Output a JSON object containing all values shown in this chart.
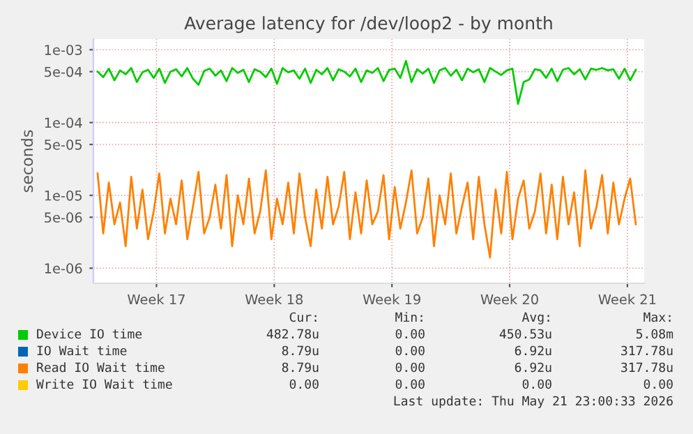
{
  "chart_data": {
    "type": "line",
    "title": "Average latency for /dev/loop2 - by month",
    "ylabel": "seconds",
    "log": "y",
    "x": [
      "2026-04-20T00:00",
      "2026-04-20T08:00",
      "2026-04-20T16:00",
      "2026-04-21T00:00",
      "2026-04-21T08:00",
      "2026-04-21T16:00",
      "2026-04-22T00:00",
      "2026-04-22T08:00",
      "2026-04-22T16:00",
      "2026-04-23T00:00",
      "2026-04-23T08:00",
      "2026-04-23T16:00",
      "2026-04-24T00:00",
      "2026-04-24T08:00",
      "2026-04-24T16:00",
      "2026-04-25T00:00",
      "2026-04-25T08:00",
      "2026-04-25T16:00",
      "2026-04-26T00:00",
      "2026-04-26T08:00",
      "2026-04-26T16:00",
      "2026-04-27T00:00",
      "2026-04-27T08:00",
      "2026-04-27T16:00",
      "2026-04-28T00:00",
      "2026-04-28T08:00",
      "2026-04-28T16:00",
      "2026-04-29T00:00",
      "2026-04-29T08:00",
      "2026-04-29T16:00",
      "2026-04-30T00:00",
      "2026-04-30T08:00",
      "2026-04-30T16:00",
      "2026-05-01T00:00",
      "2026-05-01T08:00",
      "2026-05-01T16:00",
      "2026-05-02T00:00",
      "2026-05-02T08:00",
      "2026-05-02T16:00",
      "2026-05-03T00:00",
      "2026-05-03T08:00",
      "2026-05-03T16:00",
      "2026-05-04T00:00",
      "2026-05-04T08:00",
      "2026-05-04T16:00",
      "2026-05-05T00:00",
      "2026-05-05T08:00",
      "2026-05-05T16:00",
      "2026-05-06T00:00",
      "2026-05-06T08:00",
      "2026-05-06T16:00",
      "2026-05-07T00:00",
      "2026-05-07T08:00",
      "2026-05-07T16:00",
      "2026-05-08T00:00",
      "2026-05-08T08:00",
      "2026-05-08T16:00",
      "2026-05-09T00:00",
      "2026-05-09T08:00",
      "2026-05-09T16:00",
      "2026-05-10T00:00",
      "2026-05-10T08:00",
      "2026-05-10T16:00",
      "2026-05-11T00:00",
      "2026-05-11T08:00",
      "2026-05-11T16:00",
      "2026-05-12T00:00",
      "2026-05-12T08:00",
      "2026-05-12T16:00",
      "2026-05-13T00:00",
      "2026-05-13T08:00",
      "2026-05-13T16:00",
      "2026-05-14T00:00",
      "2026-05-14T08:00",
      "2026-05-14T16:00",
      "2026-05-15T00:00",
      "2026-05-15T08:00",
      "2026-05-15T16:00",
      "2026-05-16T00:00",
      "2026-05-16T08:00",
      "2026-05-16T16:00",
      "2026-05-17T00:00",
      "2026-05-17T08:00",
      "2026-05-17T16:00",
      "2026-05-18T00:00",
      "2026-05-18T08:00",
      "2026-05-18T16:00",
      "2026-05-19T00:00",
      "2026-05-19T08:00",
      "2026-05-19T16:00",
      "2026-05-20T00:00",
      "2026-05-20T08:00",
      "2026-05-20T16:00",
      "2026-05-21T00:00",
      "2026-05-21T08:00",
      "2026-05-21T16:00",
      "2026-05-22T00:00"
    ],
    "series": [
      {
        "name": "Device IO time",
        "color": "#00cc00",
        "values": [
          0.0005,
          0.00042,
          0.00055,
          0.00038,
          0.00052,
          0.00046,
          0.00056,
          0.00036,
          0.00049,
          0.00053,
          0.00041,
          0.00055,
          0.00035,
          0.0005,
          0.00054,
          0.00043,
          0.00056,
          0.0004,
          0.00033,
          0.00051,
          0.00055,
          0.00044,
          0.00052,
          0.00037,
          0.00056,
          0.00048,
          0.00053,
          0.00036,
          0.00054,
          0.0005,
          0.00042,
          0.00055,
          0.00034,
          0.00056,
          0.00049,
          0.00052,
          0.0004,
          0.00055,
          0.00035,
          0.00053,
          0.00046,
          0.00056,
          0.00038,
          0.00054,
          0.0005,
          0.00043,
          0.00055,
          0.00036,
          0.00052,
          0.00048,
          0.00056,
          0.00037,
          0.00053,
          0.00055,
          0.00041,
          0.0007,
          0.00036,
          0.00054,
          0.00047,
          0.00055,
          0.00035,
          0.00052,
          0.00056,
          0.00044,
          0.00053,
          0.00038,
          0.00055,
          0.00049,
          0.00054,
          0.00036,
          0.00056,
          0.0005,
          0.00045,
          0.00052,
          0.00055,
          0.00018,
          0.00036,
          0.00039,
          0.00054,
          0.00052,
          0.00041,
          0.00055,
          0.00037,
          0.00053,
          0.00056,
          0.00046,
          0.00054,
          0.00039,
          0.00055,
          0.00053,
          0.00056,
          0.00052,
          0.00054,
          0.0004,
          0.00055,
          0.00038,
          0.00053
        ]
      },
      {
        "name": "IO Wait time",
        "color": "#0066b3",
        "values": [
          null,
          null,
          null,
          null,
          null,
          null,
          null,
          null,
          null,
          null,
          null,
          null,
          null,
          null,
          null,
          null,
          null,
          null,
          null,
          null,
          null,
          null,
          null,
          null,
          null,
          null,
          null,
          null,
          null,
          null,
          null,
          null,
          null,
          null,
          null,
          null,
          null,
          null,
          null,
          null,
          null,
          null,
          null,
          null,
          null,
          null,
          null,
          null,
          null,
          null,
          null,
          null,
          null,
          null,
          null,
          null,
          null,
          null,
          null,
          null,
          null,
          null,
          null,
          null,
          null,
          null,
          null,
          null,
          null,
          null,
          null,
          null,
          null,
          null,
          null,
          null,
          null,
          null,
          null,
          null,
          null,
          null,
          null,
          null,
          null,
          null,
          null,
          null,
          null,
          null,
          null,
          null,
          null,
          null,
          null,
          null,
          null
        ]
      },
      {
        "name": "Read IO Wait time",
        "color": "#ff8000",
        "values": [
          2e-05,
          3e-06,
          1.5e-05,
          4e-06,
          8e-06,
          2e-06,
          1.8e-05,
          3.5e-06,
          1.2e-05,
          2.5e-06,
          6e-06,
          2e-05,
          3e-06,
          9e-06,
          4e-06,
          1.6e-05,
          2.5e-06,
          7e-06,
          2.1e-05,
          3e-06,
          5e-06,
          1.4e-05,
          3.5e-06,
          1.9e-05,
          2e-06,
          1e-05,
          4e-06,
          1.7e-05,
          3e-06,
          6e-06,
          2.2e-05,
          2.5e-06,
          9e-06,
          4e-06,
          1.5e-05,
          3e-06,
          2e-05,
          5e-06,
          2e-06,
          1.2e-05,
          3.5e-06,
          1.8e-05,
          4e-06,
          7e-06,
          2.1e-05,
          2.5e-06,
          1.1e-05,
          3e-06,
          1.6e-05,
          4e-06,
          6e-06,
          1.9e-05,
          2.5e-06,
          1.3e-05,
          3.5e-06,
          8e-06,
          2.2e-05,
          3e-06,
          5e-06,
          1.7e-05,
          2e-06,
          1e-05,
          4e-06,
          2e-05,
          3e-06,
          7e-06,
          1.5e-05,
          2.5e-06,
          1.8e-05,
          4e-06,
          1.4e-06,
          1.2e-05,
          3e-06,
          2.1e-05,
          2.5e-06,
          9e-06,
          1.6e-05,
          3.5e-06,
          6e-06,
          2e-05,
          3e-06,
          1.4e-05,
          2.5e-06,
          1.8e-05,
          4e-06,
          1.1e-05,
          2e-06,
          2.2e-05,
          3.5e-06,
          7e-06,
          1.9e-05,
          3e-06,
          1.5e-05,
          4e-06,
          9e-06,
          1.7e-05,
          4e-06
        ]
      },
      {
        "name": "Write IO Wait time",
        "color": "#ffcc00",
        "values": [
          null,
          null,
          null,
          null,
          null,
          null,
          null,
          null,
          null,
          null,
          null,
          null,
          null,
          null,
          null,
          null,
          null,
          null,
          null,
          null,
          null,
          null,
          null,
          null,
          null,
          null,
          null,
          null,
          null,
          null,
          null,
          null,
          null,
          null,
          null,
          null,
          null,
          null,
          null,
          null,
          null,
          null,
          null,
          null,
          null,
          null,
          null,
          null,
          null,
          null,
          null,
          null,
          null,
          null,
          null,
          null,
          null,
          null,
          null,
          null,
          null,
          null,
          null,
          null,
          null,
          null,
          null,
          null,
          null,
          null,
          null,
          null,
          null,
          null,
          null,
          null,
          null,
          null,
          null,
          null,
          null,
          null,
          null,
          null,
          null,
          null,
          null,
          null,
          null,
          null,
          null,
          null,
          null,
          null,
          null,
          null,
          null
        ]
      }
    ],
    "xlim": [
      "2026-04-19T18:00",
      "2026-05-22T12:00"
    ],
    "xticks": [
      {
        "value": "2026-04-23T12:00",
        "label": "Week 17"
      },
      {
        "value": "2026-04-30T12:00",
        "label": "Week 18"
      },
      {
        "value": "2026-05-07T12:00",
        "label": "Week 19"
      },
      {
        "value": "2026-05-14T12:00",
        "label": "Week 20"
      },
      {
        "value": "2026-05-21T12:00",
        "label": "Week 21"
      }
    ],
    "ylim": [
      6.2e-07,
      0.0014
    ],
    "yticks": [
      {
        "value": 0.001,
        "label": "1e-03"
      },
      {
        "value": 0.0005,
        "label": "5e-04"
      },
      {
        "value": 0.0001,
        "label": "1e-04"
      },
      {
        "value": 5e-05,
        "label": "5e-05"
      },
      {
        "value": 1e-05,
        "label": "1e-05"
      },
      {
        "value": 5e-06,
        "label": "5e-06"
      },
      {
        "value": 1e-06,
        "label": "1e-06"
      }
    ],
    "grid": true,
    "legend": "bottom",
    "annotations": [
      "Cur:",
      "Min:",
      "Avg:",
      "Max:",
      "482.78u",
      "0.00",
      "450.53u",
      "5.08m",
      "8.79u",
      "0.00",
      "6.92u",
      "317.78u",
      "8.79u",
      "0.00",
      "6.92u",
      "317.78u",
      "0.00",
      "0.00",
      "0.00",
      "0.00",
      "Last update: Thu May 21 23:00:33 2026"
    ]
  }
}
